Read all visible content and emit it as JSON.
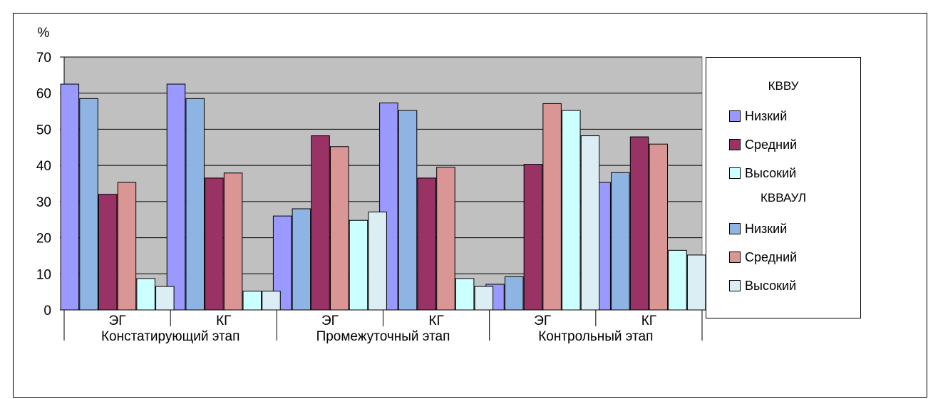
{
  "chart_data": {
    "type": "bar",
    "y_unit_label": "%",
    "ylim": [
      0,
      70
    ],
    "y_ticks": [
      0,
      10,
      20,
      30,
      40,
      50,
      60,
      70
    ],
    "grid": true,
    "legend_position": "right",
    "stages": [
      "Констатирующий этап",
      "Промежуточный этап",
      "Контрольный этап"
    ],
    "groups": [
      "ЭГ",
      "КГ",
      "ЭГ",
      "КГ",
      "ЭГ",
      "КГ"
    ],
    "legend_groups": [
      "КВВУ",
      "КВВАУЛ"
    ],
    "series": [
      {
        "name": "Низкий",
        "legend_group": "КВВУ",
        "color": "#9999ff",
        "values": [
          62.5,
          62.5,
          26,
          57.3,
          7.1,
          35.3
        ]
      },
      {
        "name": "Низкий",
        "legend_group": "КВВАУЛ",
        "color": "#8eb4e3",
        "values": [
          58.5,
          58.5,
          28,
          55.2,
          9.2,
          38
        ]
      },
      {
        "name": "Средний",
        "legend_group": "КВВУ",
        "color": "#993366",
        "values": [
          32,
          36.5,
          48.2,
          36.5,
          40.3,
          47.9
        ]
      },
      {
        "name": "Средний",
        "legend_group": "КВВАУЛ",
        "color": "#d99694",
        "values": [
          35.3,
          37.9,
          45.2,
          39.5,
          57.1,
          45.9
        ]
      },
      {
        "name": "Высокий",
        "legend_group": "КВВУ",
        "color": "#ccffff",
        "values": [
          8.7,
          5.2,
          24.8,
          8.7,
          55.2,
          16.5
        ]
      },
      {
        "name": "Высокий",
        "legend_group": "КВВАУЛ",
        "color": "#dbeef4",
        "values": [
          6.5,
          5.2,
          27.1,
          6.5,
          48.2,
          15.2
        ]
      }
    ]
  },
  "colors": {
    "plot_background": "#c0c0c0",
    "gridline": "#000000"
  }
}
